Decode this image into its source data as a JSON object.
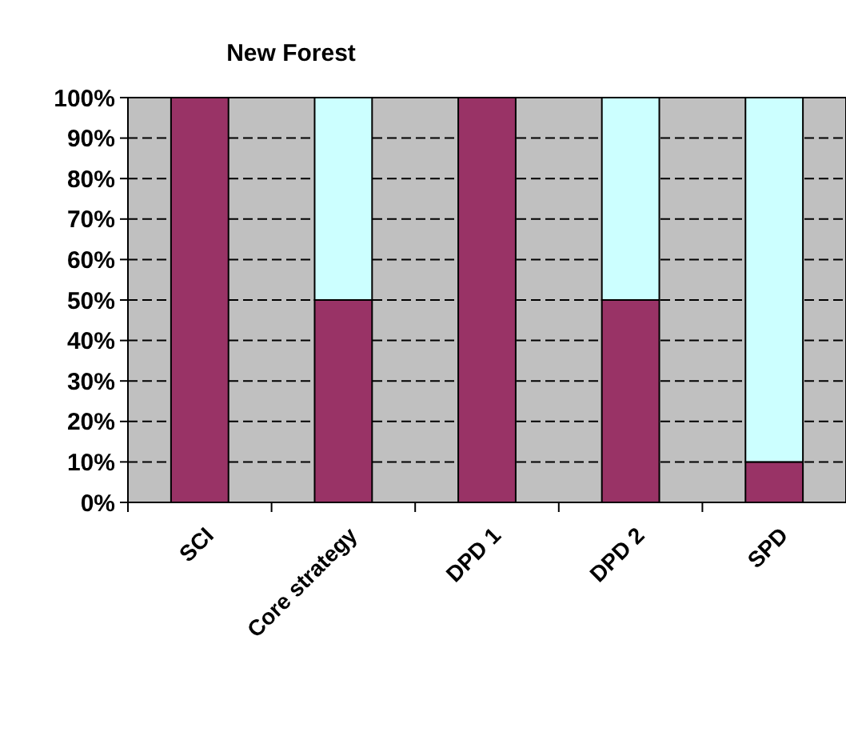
{
  "chart_data": {
    "type": "bar",
    "title": "New Forest",
    "categories": [
      "SCI",
      "Core strategy",
      "DPD 1",
      "DPD 2",
      "SPD"
    ],
    "stacked": true,
    "series": [
      {
        "color": "#993366",
        "values": [
          100,
          50,
          100,
          50,
          10
        ]
      },
      {
        "color": "#ccffff",
        "values": [
          0,
          50,
          0,
          50,
          90
        ]
      }
    ],
    "ylim": [
      0,
      100
    ],
    "yticks": [
      {
        "value": 0,
        "label": "0%"
      },
      {
        "value": 10,
        "label": "10%"
      },
      {
        "value": 20,
        "label": "20%"
      },
      {
        "value": 30,
        "label": "30%"
      },
      {
        "value": 40,
        "label": "40%"
      },
      {
        "value": 50,
        "label": "50%"
      },
      {
        "value": 60,
        "label": "60%"
      },
      {
        "value": 70,
        "label": "70%"
      },
      {
        "value": 80,
        "label": "80%"
      },
      {
        "value": 90,
        "label": "90%"
      },
      {
        "value": 100,
        "label": "100%"
      }
    ],
    "grid": "y"
  }
}
